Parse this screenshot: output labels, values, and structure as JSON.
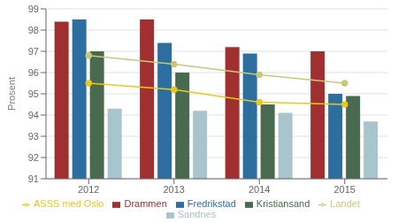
{
  "chart_data": {
    "type": "bar",
    "categories": [
      "2012",
      "2013",
      "2014",
      "2015"
    ],
    "ylabel": "Prosent",
    "ylim": [
      91,
      99
    ],
    "yticks": [
      91,
      92,
      93,
      94,
      95,
      96,
      97,
      98,
      99
    ],
    "grid": true,
    "legend": "bottom",
    "series": [
      {
        "name": "Drammen",
        "color": "#A03030",
        "values": [
          98.4,
          98.5,
          97.2,
          97.0
        ]
      },
      {
        "name": "Fredrikstad",
        "color": "#2E6E9E",
        "values": [
          98.5,
          97.4,
          96.9,
          95.0
        ]
      },
      {
        "name": "Kristiansand",
        "color": "#4A6A50",
        "values": [
          97.0,
          96.0,
          94.5,
          94.9
        ]
      },
      {
        "name": "Sandnes",
        "color": "#A8C4CC",
        "values": [
          94.3,
          94.2,
          94.1,
          93.7
        ]
      },
      {
        "name": "Landet",
        "type": "line",
        "marker": "circle",
        "color": "#C8C878",
        "values": [
          96.8,
          96.4,
          95.9,
          95.5
        ]
      },
      {
        "name": "ASSS med Oslo",
        "type": "line",
        "marker": "circle",
        "color": "#E8C820",
        "values": [
          95.5,
          95.2,
          94.6,
          94.5
        ]
      }
    ]
  }
}
